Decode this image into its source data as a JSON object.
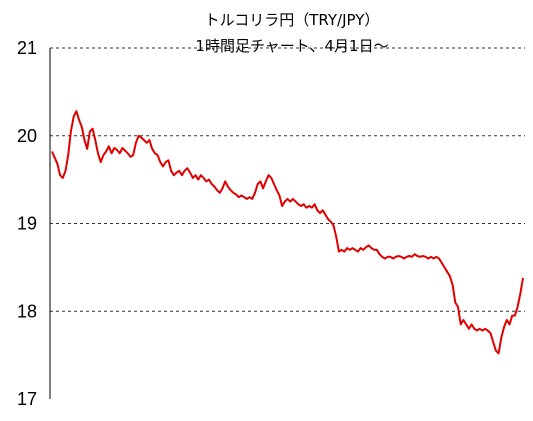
{
  "chart_data": {
    "type": "line",
    "title": "トルコリラ円（TRY/JPY）",
    "subtitle": "1時間足チャート、4月1日～",
    "xlabel": "",
    "ylabel": "",
    "ylim": [
      17,
      21
    ],
    "yticks": [
      "21",
      "20",
      "19",
      "18",
      "17"
    ],
    "grid": true,
    "line_color": "#e00000",
    "series": [
      {
        "points": [
          [
            0,
            19.82
          ],
          [
            1,
            19.75
          ],
          [
            2,
            19.68
          ],
          [
            3,
            19.55
          ],
          [
            4,
            19.52
          ],
          [
            5,
            19.6
          ],
          [
            6,
            19.78
          ],
          [
            7,
            20.05
          ],
          [
            8,
            20.22
          ],
          [
            9,
            20.28
          ],
          [
            10,
            20.18
          ],
          [
            11,
            20.1
          ],
          [
            12,
            19.95
          ],
          [
            13,
            19.85
          ],
          [
            14,
            20.05
          ],
          [
            15,
            20.08
          ],
          [
            16,
            19.95
          ],
          [
            17,
            19.8
          ],
          [
            18,
            19.7
          ],
          [
            19,
            19.78
          ],
          [
            20,
            19.82
          ],
          [
            21,
            19.88
          ],
          [
            22,
            19.8
          ],
          [
            23,
            19.86
          ],
          [
            24,
            19.84
          ],
          [
            25,
            19.8
          ],
          [
            26,
            19.86
          ],
          [
            27,
            19.83
          ],
          [
            28,
            19.8
          ],
          [
            29,
            19.76
          ],
          [
            30,
            19.78
          ],
          [
            31,
            19.92
          ],
          [
            32,
            20.0
          ],
          [
            33,
            19.98
          ],
          [
            34,
            19.95
          ],
          [
            35,
            19.92
          ],
          [
            36,
            19.95
          ],
          [
            37,
            19.85
          ],
          [
            38,
            19.8
          ],
          [
            39,
            19.78
          ],
          [
            40,
            19.7
          ],
          [
            41,
            19.65
          ],
          [
            42,
            19.7
          ],
          [
            43,
            19.72
          ],
          [
            44,
            19.6
          ],
          [
            45,
            19.55
          ],
          [
            46,
            19.58
          ],
          [
            47,
            19.6
          ],
          [
            48,
            19.55
          ],
          [
            49,
            19.6
          ],
          [
            50,
            19.63
          ],
          [
            51,
            19.58
          ],
          [
            52,
            19.52
          ],
          [
            53,
            19.55
          ],
          [
            54,
            19.5
          ],
          [
            55,
            19.55
          ],
          [
            56,
            19.52
          ],
          [
            57,
            19.48
          ],
          [
            58,
            19.5
          ],
          [
            59,
            19.45
          ],
          [
            60,
            19.42
          ],
          [
            61,
            19.38
          ],
          [
            62,
            19.35
          ],
          [
            63,
            19.4
          ],
          [
            64,
            19.48
          ],
          [
            65,
            19.42
          ],
          [
            66,
            19.38
          ],
          [
            67,
            19.35
          ],
          [
            68,
            19.33
          ],
          [
            69,
            19.3
          ],
          [
            70,
            19.32
          ],
          [
            71,
            19.3
          ],
          [
            72,
            19.28
          ],
          [
            73,
            19.3
          ],
          [
            74,
            19.28
          ],
          [
            75,
            19.35
          ],
          [
            76,
            19.45
          ],
          [
            77,
            19.48
          ],
          [
            78,
            19.4
          ],
          [
            79,
            19.48
          ],
          [
            80,
            19.55
          ],
          [
            81,
            19.52
          ],
          [
            82,
            19.45
          ],
          [
            83,
            19.38
          ],
          [
            84,
            19.32
          ],
          [
            85,
            19.2
          ],
          [
            86,
            19.25
          ],
          [
            87,
            19.28
          ],
          [
            88,
            19.25
          ],
          [
            89,
            19.28
          ],
          [
            90,
            19.25
          ],
          [
            91,
            19.22
          ],
          [
            92,
            19.2
          ],
          [
            93,
            19.22
          ],
          [
            94,
            19.18
          ],
          [
            95,
            19.2
          ],
          [
            96,
            19.18
          ],
          [
            97,
            19.22
          ],
          [
            98,
            19.15
          ],
          [
            99,
            19.12
          ],
          [
            100,
            19.15
          ],
          [
            101,
            19.1
          ],
          [
            102,
            19.05
          ],
          [
            103,
            19.02
          ],
          [
            104,
            18.98
          ],
          [
            105,
            18.85
          ],
          [
            106,
            18.68
          ],
          [
            107,
            18.7
          ],
          [
            108,
            18.68
          ],
          [
            109,
            18.72
          ],
          [
            110,
            18.7
          ],
          [
            111,
            18.72
          ],
          [
            112,
            18.7
          ],
          [
            113,
            18.68
          ],
          [
            114,
            18.72
          ],
          [
            115,
            18.7
          ],
          [
            116,
            18.73
          ],
          [
            117,
            18.75
          ],
          [
            118,
            18.72
          ],
          [
            119,
            18.7
          ],
          [
            120,
            18.7
          ],
          [
            121,
            18.65
          ],
          [
            122,
            18.62
          ],
          [
            123,
            18.6
          ],
          [
            124,
            18.62
          ],
          [
            125,
            18.62
          ],
          [
            126,
            18.6
          ],
          [
            127,
            18.62
          ],
          [
            128,
            18.63
          ],
          [
            129,
            18.62
          ],
          [
            130,
            18.6
          ],
          [
            131,
            18.62
          ],
          [
            132,
            18.63
          ],
          [
            133,
            18.62
          ],
          [
            134,
            18.65
          ],
          [
            135,
            18.63
          ],
          [
            136,
            18.62
          ],
          [
            137,
            18.63
          ],
          [
            138,
            18.62
          ],
          [
            139,
            18.6
          ],
          [
            140,
            18.62
          ],
          [
            141,
            18.6
          ],
          [
            142,
            18.62
          ],
          [
            143,
            18.6
          ],
          [
            144,
            18.55
          ],
          [
            145,
            18.5
          ],
          [
            146,
            18.45
          ],
          [
            147,
            18.4
          ],
          [
            148,
            18.3
          ],
          [
            149,
            18.1
          ],
          [
            150,
            18.05
          ],
          [
            151,
            17.85
          ],
          [
            152,
            17.9
          ],
          [
            153,
            17.85
          ],
          [
            154,
            17.8
          ],
          [
            155,
            17.85
          ],
          [
            156,
            17.8
          ],
          [
            157,
            17.78
          ],
          [
            158,
            17.8
          ],
          [
            159,
            17.78
          ],
          [
            160,
            17.8
          ],
          [
            161,
            17.78
          ],
          [
            162,
            17.75
          ],
          [
            163,
            17.65
          ],
          [
            164,
            17.55
          ],
          [
            165,
            17.52
          ],
          [
            166,
            17.7
          ],
          [
            167,
            17.82
          ],
          [
            168,
            17.9
          ],
          [
            169,
            17.85
          ],
          [
            170,
            17.95
          ],
          [
            171,
            17.95
          ],
          [
            172,
            18.05
          ],
          [
            173,
            18.2
          ],
          [
            174,
            18.38
          ]
        ]
      }
    ]
  }
}
